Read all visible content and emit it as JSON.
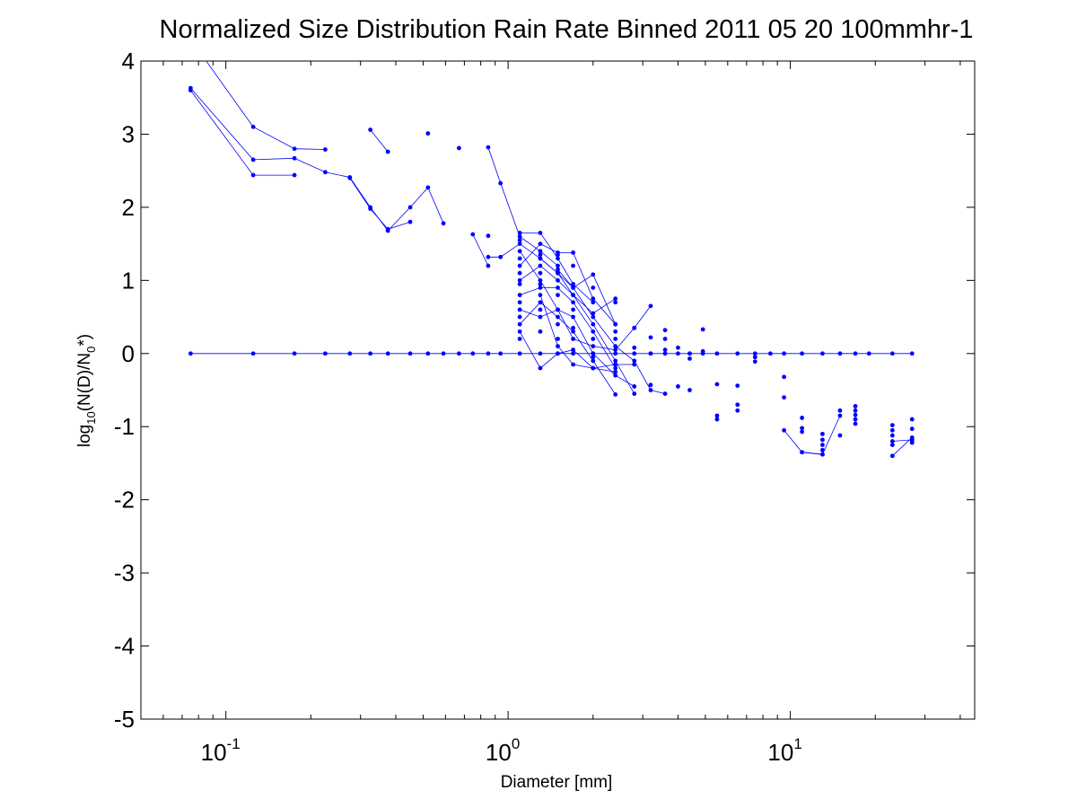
{
  "chart_data": {
    "type": "scatter",
    "title": "Normalized Size Distribution Rain Rate Binned 2011 05 20 100mmhr-1",
    "xlabel": "Diameter [mm]",
    "ylabel_base": "log",
    "ylabel_sub": "10",
    "ylabel_mid": "(N(D)/N",
    "ylabel_sub2": "0",
    "ylabel_end": "*)",
    "x_scale": "log",
    "xlim": [
      0.05,
      45
    ],
    "ylim": [
      -5,
      4
    ],
    "x_tick_labels": [
      {
        "value": 0.1,
        "base": "10",
        "exp": "-1"
      },
      {
        "value": 1,
        "base": "10",
        "exp": "0"
      },
      {
        "value": 10,
        "base": "10",
        "exp": "1"
      }
    ],
    "y_ticks": [
      -5,
      -4,
      -3,
      -2,
      -1,
      0,
      1,
      2,
      3,
      4
    ],
    "y_tick_labels": [
      "-5",
      "-4",
      "-3",
      "-2",
      "-1",
      "0",
      "1",
      "2",
      "3",
      "4"
    ],
    "grid": false,
    "marker_color": "#0000ff",
    "series": [
      {
        "x": [
          0.075,
          0.125,
          0.175,
          0.225
        ],
        "y": [
          4.3,
          3.1,
          2.8,
          2.79
        ]
      },
      {
        "x": [
          0.075,
          0.125,
          0.175,
          0.225,
          0.275,
          0.325,
          0.375,
          0.45,
          0.52,
          0.59
        ],
        "y": [
          3.63,
          2.65,
          2.67,
          2.48,
          2.41,
          2.0,
          1.68,
          2.0,
          2.27,
          1.78
        ]
      },
      {
        "x": [
          0.075,
          0.125,
          0.175
        ],
        "y": [
          3.6,
          2.44,
          2.44
        ]
      },
      {
        "x": [
          0.275,
          0.325,
          0.375,
          0.45
        ],
        "y": [
          2.4,
          1.98,
          1.7,
          1.8
        ]
      },
      {
        "x": [
          0.325,
          0.375
        ],
        "y": [
          3.06,
          2.76
        ]
      },
      {
        "x": [
          0.85,
          0.94,
          1.1,
          1.3,
          1.5
        ],
        "y": [
          2.82,
          2.33,
          1.6,
          1.4,
          1.2
        ]
      },
      {
        "x": [
          0.85,
          0.94,
          1.1,
          1.3,
          1.5,
          1.7,
          2.0,
          2.4,
          2.8,
          3.2,
          3.6
        ],
        "y": [
          1.32,
          1.32,
          1.5,
          1.3,
          1.1,
          0.9,
          0.5,
          0.1,
          -0.1,
          -0.5,
          -0.55
        ]
      },
      {
        "x": [
          0.75,
          0.85
        ],
        "y": [
          1.63,
          1.2
        ]
      },
      {
        "x": [
          1.1,
          1.3,
          1.5,
          1.7,
          2.0
        ],
        "y": [
          1.65,
          1.65,
          1.3,
          0.95,
          0.7
        ]
      },
      {
        "x": [
          1.1,
          1.3,
          1.5,
          1.7,
          2.0,
          2.4
        ],
        "y": [
          1.2,
          1.5,
          1.38,
          1.38,
          0.75,
          0.4
        ]
      },
      {
        "x": [
          1.1,
          1.3,
          1.5,
          1.7,
          2.0,
          2.4,
          2.8
        ],
        "y": [
          1.0,
          1.2,
          1.0,
          0.8,
          0.4,
          -0.1,
          -0.55
        ]
      },
      {
        "x": [
          1.1,
          1.3,
          1.5,
          1.7,
          2.0,
          2.4
        ],
        "y": [
          0.8,
          0.9,
          0.9,
          0.7,
          0.3,
          -0.2
        ]
      },
      {
        "x": [
          1.1,
          1.3,
          1.5,
          1.7,
          2.0,
          2.4,
          2.8
        ],
        "y": [
          0.6,
          0.5,
          0.6,
          0.5,
          0.0,
          -0.3,
          -0.45
        ]
      },
      {
        "x": [
          1.1,
          1.3,
          1.5,
          1.7,
          2.0,
          2.4
        ],
        "y": [
          0.4,
          0.7,
          0.5,
          0.3,
          -0.1,
          -0.56
        ]
      },
      {
        "x": [
          1.1,
          1.3,
          1.5,
          1.7,
          2.0,
          2.4
        ],
        "y": [
          0.3,
          -0.2,
          0.0,
          0.05,
          -0.2,
          -0.25
        ]
      },
      {
        "x": [
          1.1,
          1.3,
          1.5,
          1.7,
          2.0,
          2.4,
          2.8,
          3.2
        ],
        "y": [
          1.4,
          1.0,
          0.6,
          0.2,
          0.1,
          0.05,
          0.35,
          0.65
        ]
      },
      {
        "x": [
          1.3,
          1.5,
          1.7,
          2.0,
          2.4
        ],
        "y": [
          1.3,
          1.1,
          0.8,
          0.55,
          0.75
        ]
      },
      {
        "x": [
          1.5,
          1.7,
          2.0,
          2.4
        ],
        "y": [
          1.15,
          0.9,
          1.08,
          0.4
        ]
      },
      {
        "x": [
          1.3,
          1.5,
          1.7,
          2.0,
          2.4,
          2.8
        ],
        "y": [
          0.8,
          0.1,
          -0.15,
          -0.2,
          -0.15,
          -0.15
        ]
      },
      {
        "x": [
          11.0,
          13.0
        ],
        "y": [
          -1.35,
          -1.38
        ]
      },
      {
        "x": [
          9.5,
          11.0,
          13.0,
          15.0
        ],
        "y": [
          -1.05,
          -1.35,
          -1.38,
          -0.85
        ]
      },
      {
        "x": [
          23.0,
          27.0
        ],
        "y": [
          -1.2,
          -1.18
        ]
      },
      {
        "x": [
          23.0,
          27.0
        ],
        "y": [
          -1.4,
          -1.15
        ]
      },
      {
        "x": [
          0.075,
          0.125,
          0.175,
          0.225,
          0.275,
          0.325,
          0.375,
          0.45,
          0.52,
          0.59,
          0.67,
          0.75,
          0.85,
          0.94,
          1.1,
          1.3,
          1.5,
          1.7,
          2.0,
          2.4,
          2.8,
          3.2,
          3.6,
          4.0,
          4.4,
          4.9,
          5.5,
          6.5,
          7.5,
          8.5,
          9.5,
          11.0,
          13.0,
          15.0,
          17.0,
          19.0,
          23.0,
          27.0
        ],
        "y": [
          0,
          0,
          0,
          0,
          0,
          0,
          0,
          0,
          0,
          0,
          0,
          0,
          0,
          0,
          0,
          0,
          0,
          0,
          0,
          0,
          0,
          0,
          0,
          0,
          0,
          0,
          0,
          0,
          0,
          0,
          0,
          0,
          0,
          0,
          0,
          0,
          0,
          0
        ]
      }
    ],
    "points": [
      {
        "x": 0.52,
        "y": 3.01
      },
      {
        "x": 0.67,
        "y": 2.81
      },
      {
        "x": 0.85,
        "y": 1.61
      },
      {
        "x": 1.1,
        "y": 1.55
      },
      {
        "x": 1.1,
        "y": 1.3
      },
      {
        "x": 1.1,
        "y": 1.1
      },
      {
        "x": 1.1,
        "y": 0.95
      },
      {
        "x": 1.1,
        "y": 0.7
      },
      {
        "x": 1.1,
        "y": 0.5
      },
      {
        "x": 1.1,
        "y": 0.2
      },
      {
        "x": 1.3,
        "y": 1.35
      },
      {
        "x": 1.3,
        "y": 1.1
      },
      {
        "x": 1.3,
        "y": 0.95
      },
      {
        "x": 1.3,
        "y": 0.6
      },
      {
        "x": 1.3,
        "y": 0.3
      },
      {
        "x": 1.5,
        "y": 1.35
      },
      {
        "x": 1.5,
        "y": 0.8
      },
      {
        "x": 1.5,
        "y": 0.4
      },
      {
        "x": 1.5,
        "y": 0.2
      },
      {
        "x": 1.7,
        "y": 1.2
      },
      {
        "x": 1.7,
        "y": 0.6
      },
      {
        "x": 1.7,
        "y": 0.35
      },
      {
        "x": 2.0,
        "y": 0.9
      },
      {
        "x": 2.0,
        "y": 0.2
      },
      {
        "x": 2.0,
        "y": -0.05
      },
      {
        "x": 2.4,
        "y": 0.3
      },
      {
        "x": 2.4,
        "y": 0.2
      },
      {
        "x": 2.4,
        "y": 0.7
      },
      {
        "x": 2.8,
        "y": 0.08
      },
      {
        "x": 2.8,
        "y": 0.35
      },
      {
        "x": 3.2,
        "y": 0.22
      },
      {
        "x": 3.2,
        "y": 0.0
      },
      {
        "x": 3.2,
        "y": -0.43
      },
      {
        "x": 3.6,
        "y": 0.32
      },
      {
        "x": 3.6,
        "y": 0.2
      },
      {
        "x": 3.6,
        "y": 0.05
      },
      {
        "x": 4.0,
        "y": 0.08
      },
      {
        "x": 4.0,
        "y": -0.45
      },
      {
        "x": 4.4,
        "y": 0.0
      },
      {
        "x": 4.4,
        "y": -0.07
      },
      {
        "x": 4.4,
        "y": -0.5
      },
      {
        "x": 4.9,
        "y": 0.33
      },
      {
        "x": 4.9,
        "y": 0.03
      },
      {
        "x": 5.5,
        "y": -0.42
      },
      {
        "x": 5.5,
        "y": -0.85
      },
      {
        "x": 5.5,
        "y": -0.9
      },
      {
        "x": 6.5,
        "y": -0.44
      },
      {
        "x": 6.5,
        "y": -0.7
      },
      {
        "x": 6.5,
        "y": -0.78
      },
      {
        "x": 7.5,
        "y": -0.05
      },
      {
        "x": 7.5,
        "y": -0.11
      },
      {
        "x": 9.5,
        "y": -0.32
      },
      {
        "x": 9.5,
        "y": -0.6
      },
      {
        "x": 11.0,
        "y": -0.88
      },
      {
        "x": 11.0,
        "y": -1.02
      },
      {
        "x": 11.0,
        "y": -1.07
      },
      {
        "x": 13.0,
        "y": -1.1
      },
      {
        "x": 13.0,
        "y": -1.18
      },
      {
        "x": 13.0,
        "y": -1.25
      },
      {
        "x": 13.0,
        "y": -1.32
      },
      {
        "x": 15.0,
        "y": -0.78
      },
      {
        "x": 15.0,
        "y": -1.12
      },
      {
        "x": 17.0,
        "y": -0.72
      },
      {
        "x": 17.0,
        "y": -0.78
      },
      {
        "x": 17.0,
        "y": -0.84
      },
      {
        "x": 17.0,
        "y": -0.9
      },
      {
        "x": 17.0,
        "y": -0.96
      },
      {
        "x": 23.0,
        "y": -0.98
      },
      {
        "x": 23.0,
        "y": -1.05
      },
      {
        "x": 23.0,
        "y": -1.12
      },
      {
        "x": 23.0,
        "y": -1.25
      },
      {
        "x": 27.0,
        "y": -0.9
      },
      {
        "x": 27.0,
        "y": -1.03
      },
      {
        "x": 27.0,
        "y": -1.2
      },
      {
        "x": 27.0,
        "y": -1.22
      }
    ]
  }
}
